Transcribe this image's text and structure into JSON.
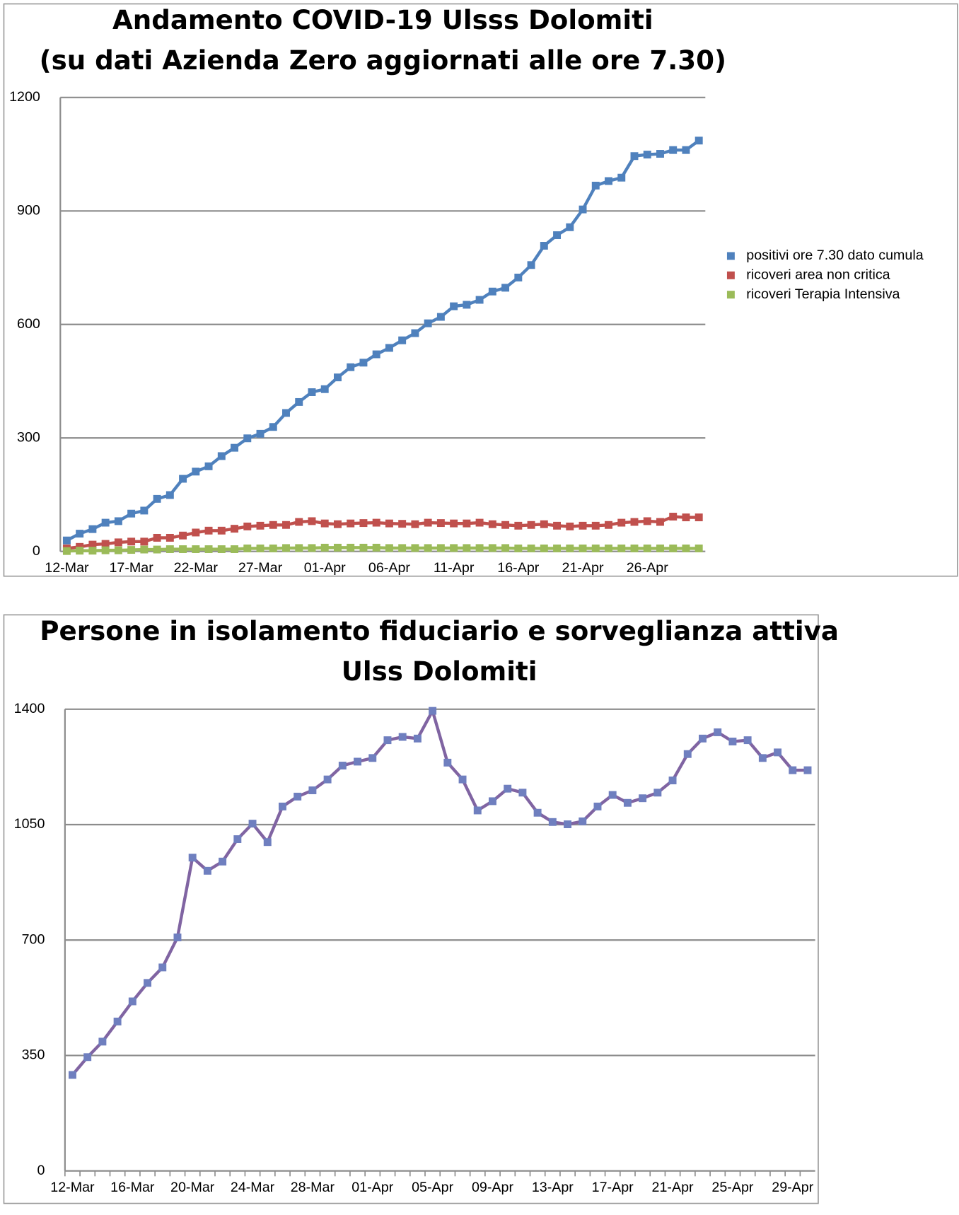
{
  "chart_data": [
    {
      "type": "line",
      "title": [
        "Andamento COVID-19 Ulsss Dolomiti",
        "(su dati Azienda Zero aggiornati alle ore 7.30)"
      ],
      "categories": [
        "12-Mar",
        null,
        null,
        null,
        null,
        "17-Mar",
        null,
        null,
        null,
        null,
        "22-Mar",
        null,
        null,
        null,
        null,
        "27-Mar",
        null,
        null,
        null,
        null,
        "01-Apr",
        null,
        null,
        null,
        null,
        "06-Apr",
        null,
        null,
        null,
        null,
        "11-Apr",
        null,
        null,
        null,
        null,
        "16-Apr",
        null,
        null,
        null,
        null,
        "21-Apr",
        null,
        null,
        null,
        null,
        "26-Apr",
        null,
        null,
        null,
        null
      ],
      "series": [
        {
          "name": "positivi ore 7.30 dato cumula",
          "color": "#4f81bd",
          "values": [
            29,
            47,
            59,
            76,
            80,
            100,
            108,
            139,
            149,
            192,
            211,
            225,
            252,
            274,
            299,
            311,
            329,
            366,
            395,
            421,
            429,
            460,
            487,
            499,
            521,
            538,
            558,
            577,
            603,
            620,
            648,
            652,
            665,
            687,
            697,
            724,
            757,
            808,
            836,
            857,
            904,
            967,
            979,
            988,
            1045,
            1049,
            1051,
            1061,
            1061,
            1086
          ]
        },
        {
          "name": "ricoveri area non critica",
          "color": "#c0504d",
          "values": [
            8,
            12,
            18,
            20,
            24,
            26,
            26,
            36,
            36,
            42,
            50,
            55,
            55,
            60,
            66,
            68,
            70,
            70,
            78,
            80,
            74,
            72,
            74,
            75,
            76,
            74,
            73,
            72,
            76,
            75,
            74,
            74,
            76,
            72,
            70,
            68,
            70,
            72,
            68,
            66,
            68,
            68,
            70,
            76,
            78,
            80,
            78,
            92,
            90,
            90
          ]
        },
        {
          "name": "ricoveri Terapia Intensiva",
          "color": "#9bbb59",
          "values": [
            1,
            2,
            2,
            3,
            3,
            4,
            5,
            5,
            6,
            6,
            6,
            6,
            6,
            6,
            8,
            8,
            8,
            9,
            9,
            9,
            10,
            10,
            10,
            10,
            10,
            9,
            9,
            9,
            9,
            9,
            9,
            9,
            9,
            9,
            9,
            8,
            8,
            8,
            8,
            8,
            8,
            8,
            8,
            8,
            8,
            8,
            8,
            8,
            8,
            8
          ]
        }
      ],
      "ylim": [
        0,
        1200
      ],
      "yticks": [
        0,
        300,
        600,
        900,
        1200
      ],
      "grid": true,
      "legend": "right"
    },
    {
      "type": "line",
      "title": [
        "Persone in isolamento fiduciario e sorveglianza attiva",
        "Ulss Dolomiti"
      ],
      "categories": [
        "12-Mar",
        null,
        null,
        null,
        "16-Mar",
        null,
        null,
        null,
        "20-Mar",
        null,
        null,
        null,
        "24-Mar",
        null,
        null,
        null,
        "28-Mar",
        null,
        null,
        null,
        "01-Apr",
        null,
        null,
        null,
        "05-Apr",
        null,
        null,
        null,
        "09-Apr",
        null,
        null,
        null,
        "13-Apr",
        null,
        null,
        null,
        "17-Apr",
        null,
        null,
        null,
        "21-Apr",
        null,
        null,
        null,
        "25-Apr",
        null,
        null,
        null,
        "29-Apr",
        null
      ],
      "series": [
        {
          "color": "#8064a2",
          "marker_color": "#6f7fbf",
          "values": [
            291,
            345,
            392,
            453,
            514,
            570,
            617,
            708,
            950,
            910,
            938,
            1006,
            1053,
            997,
            1105,
            1135,
            1154,
            1187,
            1229,
            1241,
            1252,
            1306,
            1316,
            1311,
            1395,
            1238,
            1187,
            1093,
            1121,
            1159,
            1147,
            1086,
            1058,
            1051,
            1060,
            1105,
            1140,
            1116,
            1130,
            1147,
            1184,
            1264,
            1311,
            1330,
            1302,
            1306,
            1252,
            1269,
            1215,
            1215
          ]
        }
      ],
      "ylim": [
        0,
        1400
      ],
      "yticks": [
        0,
        350,
        700,
        1050,
        1400
      ],
      "grid": true,
      "x_tick_marks": true
    }
  ]
}
